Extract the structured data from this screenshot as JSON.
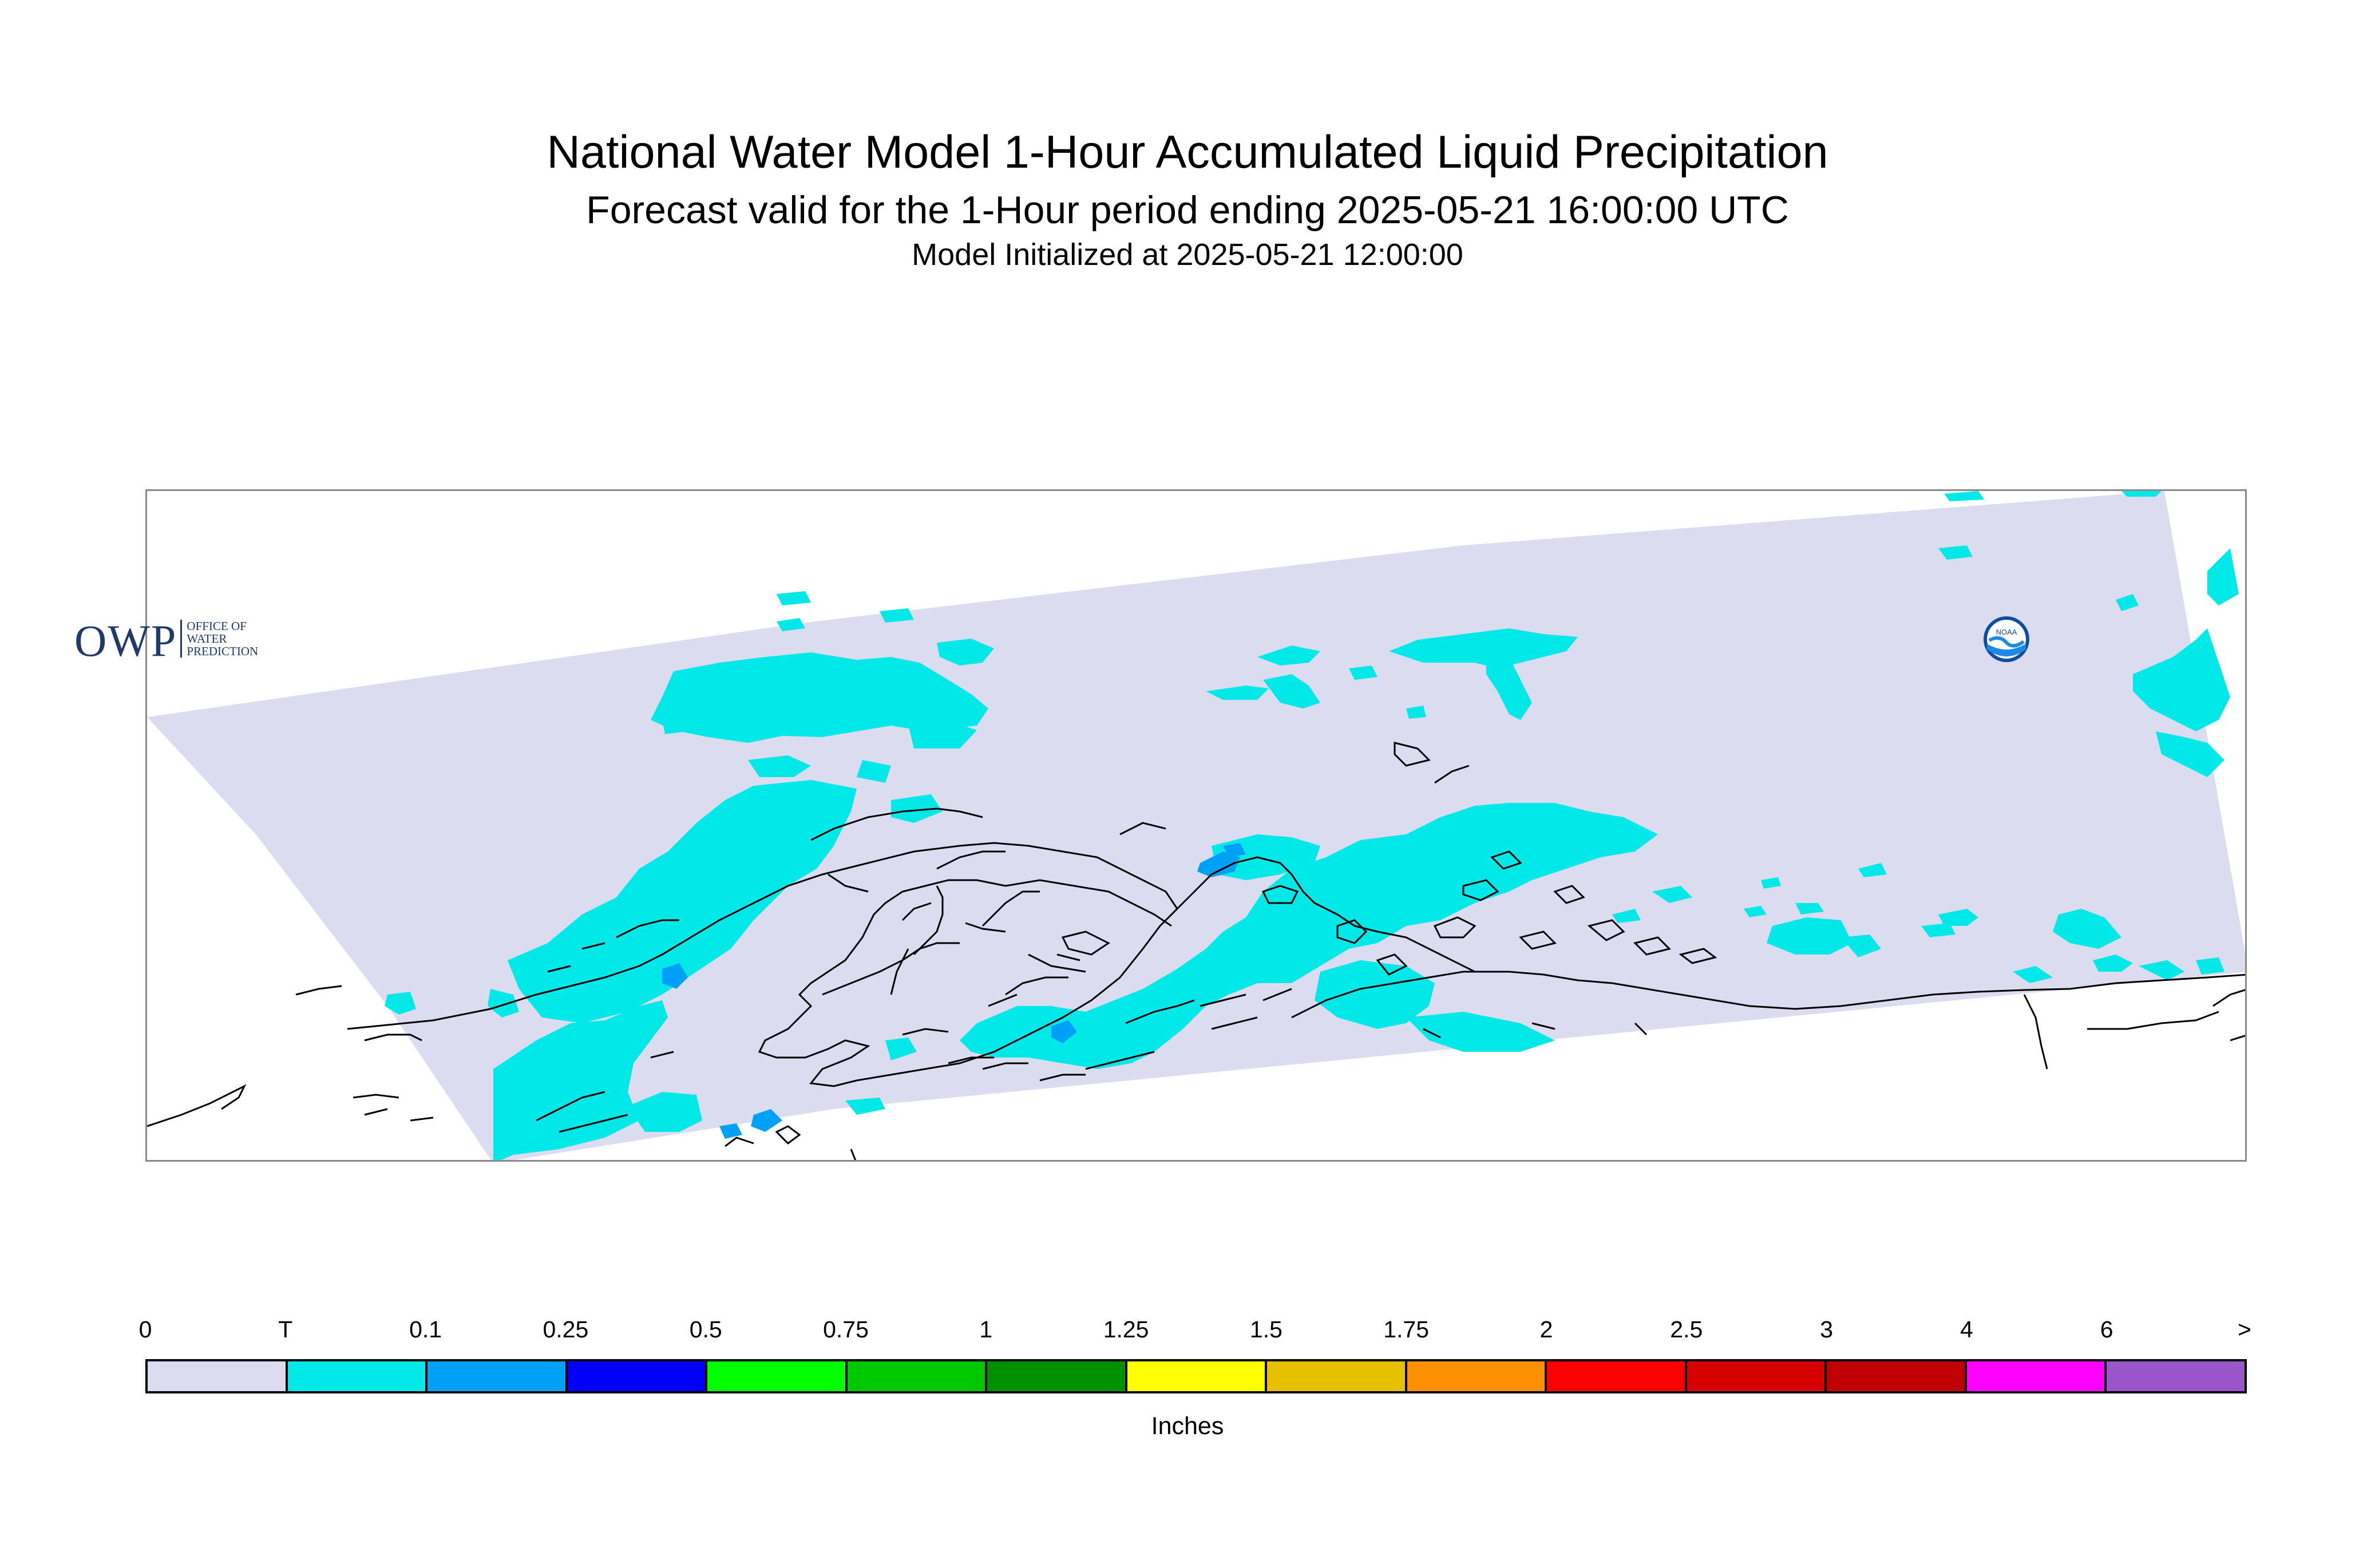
{
  "title": {
    "line1": "National Water Model 1-Hour Accumulated Liquid Precipitation",
    "line2": "Forecast valid for the 1-Hour period ending 2025-05-21 16:00:00 UTC",
    "line3": "Model Initialized at 2025-05-21 12:00:00"
  },
  "logos": {
    "owp_mark": "OWP",
    "owp_line1": "OFFICE OF",
    "owp_line2": "WATER",
    "owp_line3": "PREDICTION",
    "noaa_label": "NOAA"
  },
  "legend": {
    "units": "Inches",
    "labels": [
      "0",
      "T",
      "0.1",
      "0.25",
      "0.5",
      "0.75",
      "1",
      "1.25",
      "1.5",
      "1.75",
      "2",
      "2.5",
      "3",
      "4",
      "6",
      ">"
    ],
    "colors": [
      "#dcdcf0",
      "#00e8e8",
      "#00a0f6",
      "#0000f6",
      "#00ff00",
      "#00c800",
      "#009000",
      "#ffff00",
      "#e7c000",
      "#ff9000",
      "#ff0000",
      "#d60000",
      "#c00000",
      "#ff00ff",
      "#9955c9"
    ]
  },
  "map": {
    "domain_color": "#dcdcf0",
    "precip_color": "#00e8e8",
    "heavier_precip_color": "#00a0f6",
    "coastline_color": "#000000"
  }
}
